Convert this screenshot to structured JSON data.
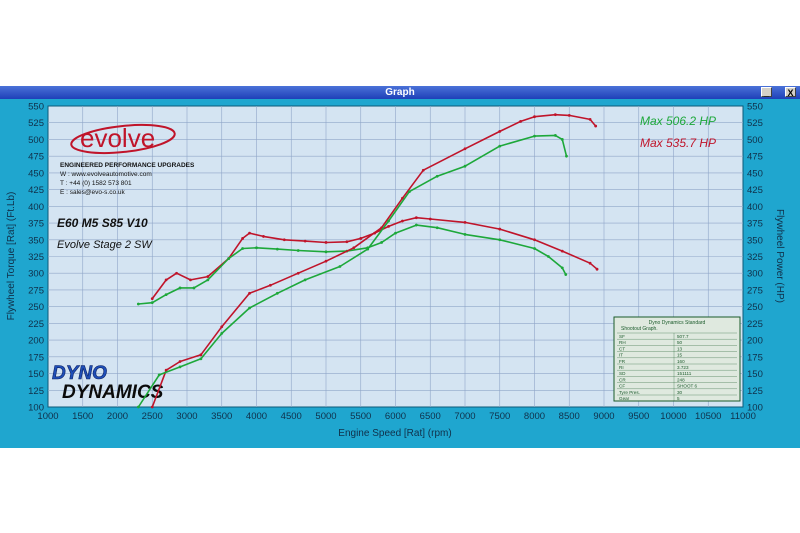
{
  "window": {
    "title": "Graph",
    "minimize_label": "_",
    "close_label": "X"
  },
  "logo": {
    "text": "evolve"
  },
  "company": {
    "line1": "ENGINEERED PERFORMANCE UPGRADES",
    "line2": "W : www.evolveautomotive.com",
    "line3": "T : +44 (0) 1582 573 801",
    "line4": "E : sales@evo-s.co.uk"
  },
  "car": {
    "model": "E60 M5 S85 V10",
    "stage": "Evolve Stage 2 SW"
  },
  "max_labels": {
    "green": "Max 506.2 HP",
    "red": "Max 535.7 HP"
  },
  "dyno_logo": {
    "word1": "DYNO",
    "word2": "DYNAMICS"
  },
  "info_box": {
    "title1": "Dyno Dynamics Standard",
    "title2": "Shootout Graph.",
    "rows": [
      [
        "SF",
        "507.7"
      ],
      [
        "RH",
        "50"
      ],
      [
        "CT",
        "13"
      ],
      [
        "IT",
        "15"
      ],
      [
        "FR",
        "160"
      ],
      [
        "RI",
        "3.723"
      ],
      [
        "SD",
        "151111"
      ],
      [
        "CR",
        "248"
      ],
      [
        "CF",
        "SHOOT 6"
      ],
      [
        "Tyre Pres.",
        "30"
      ],
      [
        "Gear",
        "5"
      ]
    ]
  },
  "chart_data": {
    "type": "line",
    "xlabel": "Engine Speed [Rat] (rpm)",
    "ylabel_left": "Flywheel Torque [Rat] (Ft.Lb)",
    "ylabel_right": "Flywheel Power (HP)",
    "xlim": [
      1000,
      11000
    ],
    "ylim": [
      100,
      550
    ],
    "x_ticks": [
      1000,
      1500,
      2000,
      2500,
      3000,
      3500,
      4000,
      4500,
      5000,
      5500,
      6000,
      6500,
      7000,
      7500,
      8000,
      8500,
      9000,
      9500,
      10000,
      10500,
      11000
    ],
    "y_ticks": [
      100,
      125,
      150,
      175,
      200,
      225,
      250,
      275,
      300,
      325,
      350,
      375,
      400,
      425,
      450,
      475,
      500,
      525,
      550
    ],
    "grid": true,
    "colors": {
      "red": "#c0142a",
      "green": "#1da83a",
      "plot_bg": "#d4e4f2",
      "grid": "#8fa6c8",
      "frame": "#1fa6cf"
    },
    "series": [
      {
        "color": "red",
        "x": [
          2500,
          2700,
          2850,
          3050,
          3300,
          3600,
          3800,
          3900,
          4100,
          4400,
          4700,
          5000,
          5300,
          5500,
          5700,
          5900,
          6100,
          6300,
          6500,
          7000,
          7500,
          8000,
          8400,
          8800,
          8900
        ],
        "y": [
          262,
          290,
          300,
          290,
          295,
          322,
          352,
          360,
          355,
          350,
          348,
          346,
          347,
          352,
          360,
          370,
          378,
          383,
          381,
          376,
          366,
          350,
          333,
          315,
          306
        ]
      },
      {
        "color": "green",
        "x": [
          2300,
          2500,
          2700,
          2900,
          3100,
          3300,
          3600,
          3800,
          4000,
          4300,
          4600,
          5000,
          5300,
          5600,
          5800,
          6000,
          6300,
          6600,
          7000,
          7500,
          8000,
          8200,
          8400,
          8450
        ],
        "y": [
          254,
          256,
          268,
          278,
          278,
          290,
          322,
          337,
          338,
          336,
          334,
          332,
          333,
          338,
          346,
          360,
          372,
          368,
          358,
          350,
          337,
          325,
          308,
          298
        ]
      },
      {
        "color": "red",
        "x": [
          2500,
          2700,
          2900,
          3200,
          3500,
          3900,
          4200,
          4600,
          5000,
          5400,
          5800,
          6100,
          6400,
          7000,
          7500,
          7800,
          8000,
          8300,
          8500,
          8800,
          8880
        ],
        "y": [
          100,
          155,
          168,
          178,
          220,
          270,
          282,
          300,
          318,
          338,
          368,
          412,
          454,
          486,
          512,
          527,
          534,
          537,
          536,
          530,
          520
        ]
      },
      {
        "color": "green",
        "x": [
          2300,
          2600,
          2900,
          3200,
          3500,
          3900,
          4300,
          4700,
          5200,
          5600,
          5900,
          6200,
          6600,
          7000,
          7500,
          8000,
          8300,
          8400,
          8460
        ],
        "y": [
          100,
          148,
          160,
          172,
          210,
          248,
          270,
          290,
          310,
          336,
          378,
          422,
          445,
          460,
          490,
          505,
          506,
          500,
          475
        ]
      }
    ]
  }
}
